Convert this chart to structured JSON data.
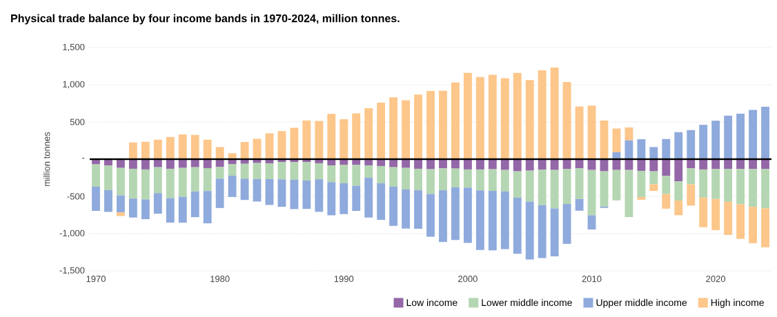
{
  "chart_data": {
    "type": "bar",
    "title": "Physical trade balance by four income bands in 1970-2024, million tonnes.",
    "ylabel": "million tonnes",
    "stacked": true,
    "grid": "y",
    "legend": "bottom right",
    "x": [
      1970,
      1971,
      1972,
      1973,
      1974,
      1975,
      1976,
      1977,
      1978,
      1979,
      1980,
      1981,
      1982,
      1983,
      1984,
      1985,
      1986,
      1987,
      1988,
      1989,
      1990,
      1991,
      1992,
      1993,
      1994,
      1995,
      1996,
      1997,
      1998,
      1999,
      2000,
      2001,
      2002,
      2003,
      2004,
      2005,
      2006,
      2007,
      2008,
      2009,
      2010,
      2011,
      2012,
      2013,
      2014,
      2015,
      2016,
      2017,
      2018,
      2019,
      2020,
      2021,
      2022,
      2023,
      2024
    ],
    "xlim": [
      1969.5,
      2024.5
    ],
    "xticks": [
      1970,
      1980,
      1990,
      2000,
      2010,
      2020
    ],
    "ylim": [
      -1500,
      1500
    ],
    "yticks": [
      {
        "value": -1500,
        "label": "-1,500"
      },
      {
        "value": -1000,
        "label": "-1,000"
      },
      -500,
      {
        "value": 0,
        "label": "-"
      },
      500,
      {
        "value": 1000,
        "label": "1,000"
      },
      {
        "value": 1500,
        "label": "1,500"
      }
    ],
    "series": [
      {
        "name": "Low income",
        "color": "#9467a8",
        "values": [
          -70,
          -86,
          -117,
          -129,
          -138,
          -108,
          -129,
          -117,
          -108,
          -120,
          -105,
          -68,
          -62,
          -52,
          -58,
          -37,
          -40,
          -40,
          -55,
          -83,
          -77,
          -77,
          -83,
          -92,
          -108,
          -117,
          -129,
          -135,
          -123,
          -126,
          -138,
          -138,
          -135,
          -145,
          -163,
          -154,
          -142,
          -145,
          -132,
          -123,
          -145,
          -163,
          -145,
          -145,
          -157,
          -163,
          -225,
          -298,
          -123,
          -138,
          -132,
          -132,
          -132,
          -132,
          -132
        ]
      },
      {
        "name": "Lower middle income",
        "color": "#b5d6b2",
        "values": [
          -300,
          -330,
          -369,
          -400,
          -403,
          -348,
          -394,
          -388,
          -326,
          -308,
          -157,
          -154,
          -200,
          -215,
          -209,
          -234,
          -237,
          -246,
          -215,
          -225,
          -246,
          -280,
          -166,
          -231,
          -262,
          -289,
          -289,
          -332,
          -295,
          -252,
          -243,
          -280,
          -292,
          -289,
          -354,
          -415,
          -477,
          -517,
          -471,
          -412,
          -609,
          -474,
          -409,
          -634,
          -351,
          -175,
          -243,
          -258,
          -215,
          -379,
          -403,
          -440,
          -474,
          -508,
          -529
        ]
      },
      {
        "name": "Upper middle income",
        "color": "#8faadc",
        "values": [
          -325,
          -292,
          -228,
          -255,
          -265,
          -277,
          -329,
          -348,
          -345,
          -434,
          -394,
          -286,
          -286,
          -302,
          -348,
          -369,
          -394,
          -382,
          -437,
          -446,
          -415,
          -338,
          -535,
          -492,
          -526,
          -526,
          -517,
          -575,
          -695,
          -708,
          -745,
          -803,
          -797,
          -775,
          -754,
          -778,
          -711,
          -643,
          -535,
          -157,
          -191,
          -18,
          95,
          255,
          268,
          163,
          271,
          363,
          391,
          462,
          517,
          585,
          612,
          662,
          705
        ]
      },
      {
        "name": "High income",
        "color": "#fdc68a",
        "values": [
          0,
          0,
          -50,
          225,
          234,
          262,
          298,
          332,
          326,
          262,
          163,
          80,
          231,
          274,
          348,
          378,
          422,
          520,
          514,
          609,
          538,
          615,
          686,
          760,
          831,
          791,
          868,
          917,
          920,
          1031,
          1160,
          1105,
          1135,
          1089,
          1160,
          1062,
          1194,
          1231,
          1037,
          708,
          720,
          520,
          317,
          172,
          -37,
          -89,
          -197,
          -197,
          -286,
          -397,
          -418,
          -446,
          -465,
          -489,
          -523
        ]
      }
    ]
  }
}
